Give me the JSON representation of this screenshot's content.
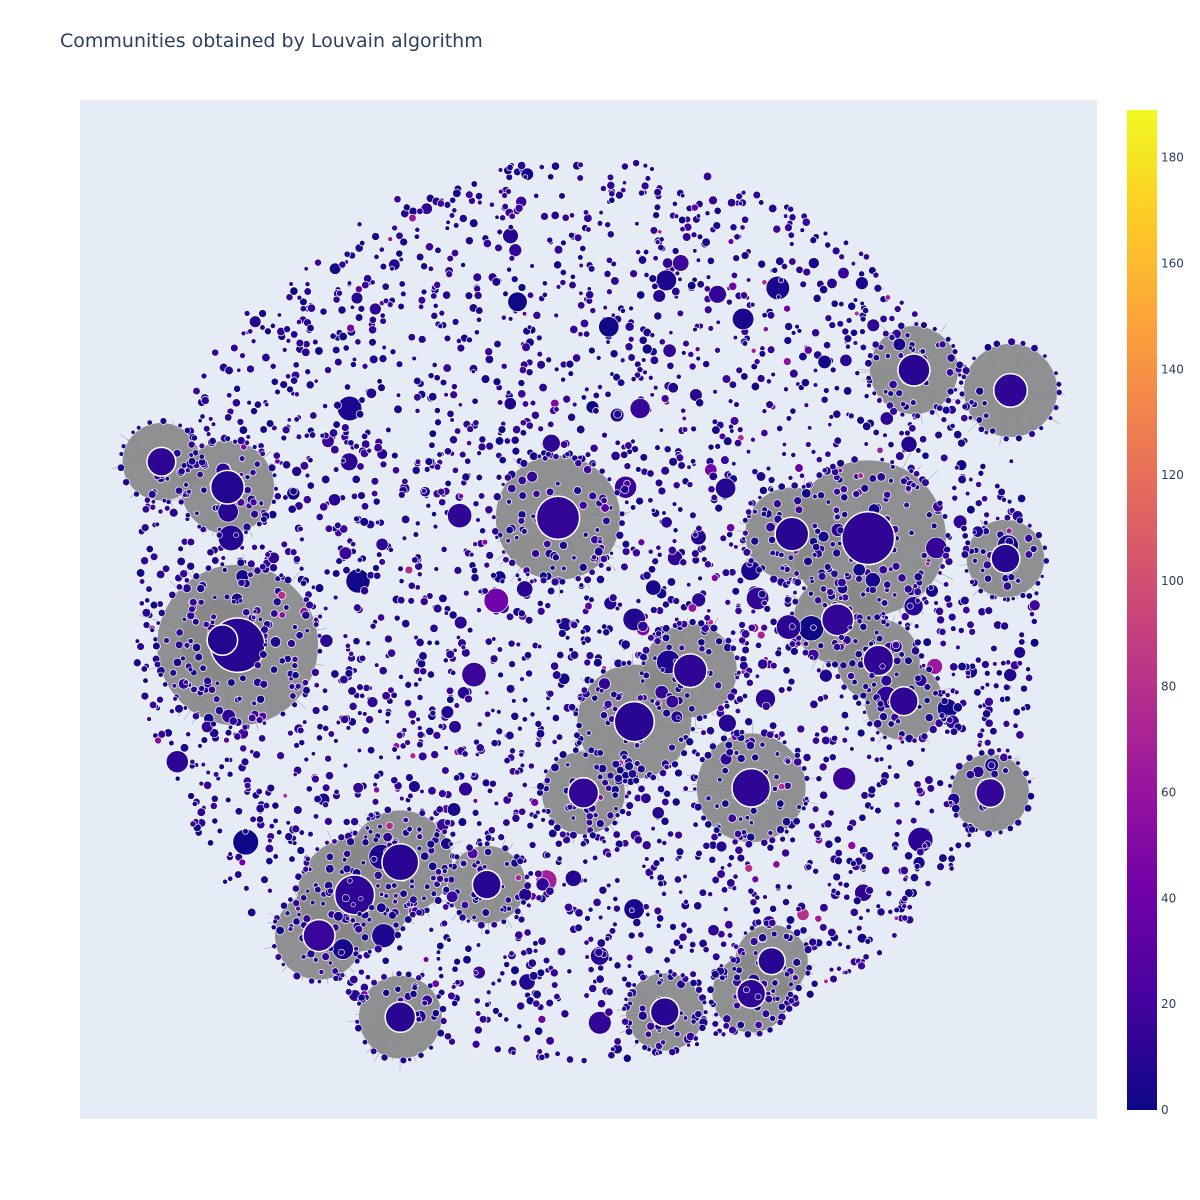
{
  "chart_data": {
    "type": "scatter",
    "subtype": "network-graph",
    "title": "Communities obtained by Louvain algorithm",
    "xlabel": "",
    "ylabel": "",
    "grid": false,
    "legend": "none",
    "plot_background": "#e5ecf6",
    "edge_color": "#888888",
    "node_outline_color": "#ffffff",
    "colorbar": {
      "colorscale": "Plasma",
      "range": [
        0,
        189
      ],
      "ticks": [
        0,
        20,
        40,
        60,
        80,
        100,
        120,
        140,
        160,
        180
      ],
      "colors": [
        "#0d0887",
        "#46039f",
        "#7201a8",
        "#9c179e",
        "#bd3786",
        "#d8576b",
        "#ed7953",
        "#fb9f3a",
        "#fdca26",
        "#f0f921"
      ]
    },
    "dominant_node_color": "#2a1a8c",
    "hubs": [
      {
        "x": 0.155,
        "y": 0.535,
        "size": 2.4,
        "value": 10
      },
      {
        "x": 0.775,
        "y": 0.43,
        "size": 2.3,
        "value": 12
      },
      {
        "x": 0.47,
        "y": 0.41,
        "size": 1.7,
        "value": 14
      },
      {
        "x": 0.27,
        "y": 0.78,
        "size": 1.5,
        "value": 12
      },
      {
        "x": 0.545,
        "y": 0.61,
        "size": 1.5,
        "value": 10
      },
      {
        "x": 0.66,
        "y": 0.675,
        "size": 1.4,
        "value": 12
      },
      {
        "x": 0.315,
        "y": 0.748,
        "size": 1.3,
        "value": 10
      },
      {
        "x": 0.145,
        "y": 0.38,
        "size": 1.1,
        "value": 8
      },
      {
        "x": 0.235,
        "y": 0.82,
        "size": 1.0,
        "value": 16
      },
      {
        "x": 0.6,
        "y": 0.56,
        "size": 1.1,
        "value": 12
      },
      {
        "x": 0.7,
        "y": 0.426,
        "size": 1.1,
        "value": 10
      },
      {
        "x": 0.915,
        "y": 0.285,
        "size": 1.1,
        "value": 12
      },
      {
        "x": 0.82,
        "y": 0.265,
        "size": 1.0,
        "value": 10
      },
      {
        "x": 0.745,
        "y": 0.51,
        "size": 1.0,
        "value": 14
      },
      {
        "x": 0.14,
        "y": 0.53,
        "size": 0.9,
        "value": 8
      },
      {
        "x": 0.495,
        "y": 0.68,
        "size": 0.9,
        "value": 14
      },
      {
        "x": 0.4,
        "y": 0.77,
        "size": 0.8,
        "value": 10
      },
      {
        "x": 0.08,
        "y": 0.355,
        "size": 0.8,
        "value": 12
      },
      {
        "x": 0.315,
        "y": 0.9,
        "size": 0.9,
        "value": 10
      },
      {
        "x": 0.785,
        "y": 0.55,
        "size": 0.9,
        "value": 12
      },
      {
        "x": 0.91,
        "y": 0.45,
        "size": 0.8,
        "value": 10
      },
      {
        "x": 0.895,
        "y": 0.68,
        "size": 0.8,
        "value": 14
      },
      {
        "x": 0.81,
        "y": 0.59,
        "size": 0.8,
        "value": 12
      },
      {
        "x": 0.575,
        "y": 0.895,
        "size": 0.8,
        "value": 10
      },
      {
        "x": 0.66,
        "y": 0.877,
        "size": 0.8,
        "value": 12
      },
      {
        "x": 0.68,
        "y": 0.845,
        "size": 0.7,
        "value": 10
      }
    ]
  }
}
